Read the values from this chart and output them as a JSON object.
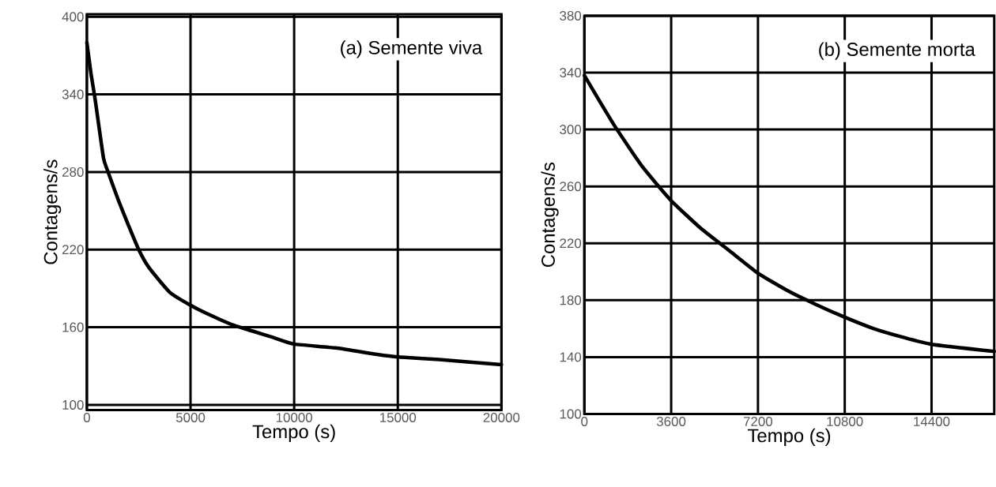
{
  "chart_data": [
    {
      "type": "line",
      "xlabel": "Tempo (s)",
      "ylabel": "Contagens/s",
      "annotations": [
        "(a) Semente viva"
      ],
      "x": [
        0,
        200,
        400,
        800,
        1000,
        1500,
        2000,
        2500,
        3000,
        4000,
        5000,
        6000,
        7000,
        8000,
        9000,
        10000,
        12000,
        14000,
        15000,
        17000,
        20000
      ],
      "series": [
        {
          "color": "#000000",
          "values": [
            380,
            356,
            336,
            291,
            281,
            259,
            239,
            220,
            206,
            187,
            177,
            169,
            162,
            157,
            152,
            147,
            144,
            139,
            137,
            135,
            131
          ]
        }
      ],
      "xlim": [
        0,
        20000
      ],
      "ylim": [
        96,
        402
      ],
      "xticks": [
        0,
        5000,
        10000,
        15000,
        20000
      ],
      "yticks": [
        100,
        160,
        220,
        280,
        340,
        400
      ],
      "grid": true
    },
    {
      "type": "line",
      "xlabel": "Tempo (s)",
      "ylabel": "Contagens/s",
      "annotations": [
        "(b) Semente morta"
      ],
      "x": [
        0,
        1200,
        2400,
        3600,
        4800,
        6000,
        7200,
        8400,
        9600,
        10800,
        12000,
        13200,
        14400,
        17000
      ],
      "series": [
        {
          "color": "#000000",
          "values": [
            338,
            304,
            274,
            250,
            231,
            215,
            199,
            187,
            177,
            168,
            160,
            154,
            149,
            144
          ]
        }
      ],
      "xlim": [
        0,
        17000
      ],
      "ylim": [
        100,
        380
      ],
      "xticks": [
        0,
        3600,
        7200,
        10800,
        14400
      ],
      "yticks": [
        100,
        140,
        180,
        220,
        260,
        300,
        340,
        380
      ],
      "grid": true
    }
  ]
}
